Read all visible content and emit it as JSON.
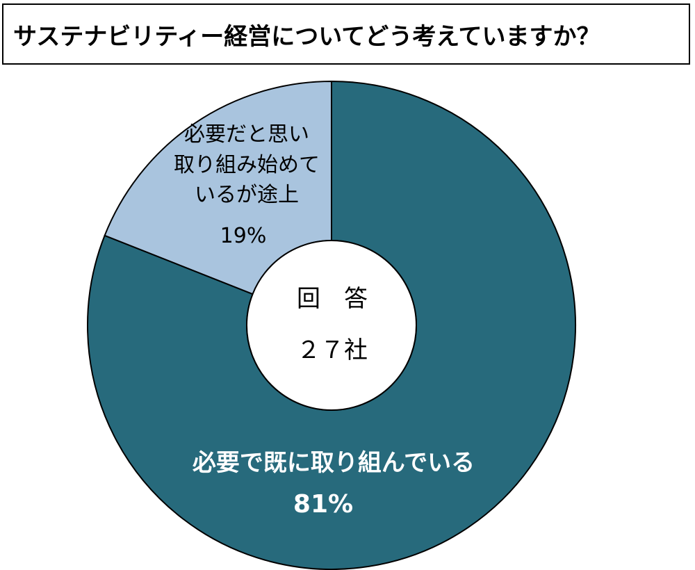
{
  "chart_data": {
    "type": "pie",
    "title": "サステナビリティー経営についてどう考えていますか？",
    "categories": [
      "必要で既に取り組んでいる",
      "必要だと思い\n取り組み始めて\nいるが途上"
    ],
    "values": [
      81,
      19
    ],
    "value_labels": [
      "81%",
      "19%"
    ],
    "colors": [
      "#276a7c",
      "#a9c4de"
    ],
    "center_label": [
      "回　答",
      "２７社"
    ]
  }
}
